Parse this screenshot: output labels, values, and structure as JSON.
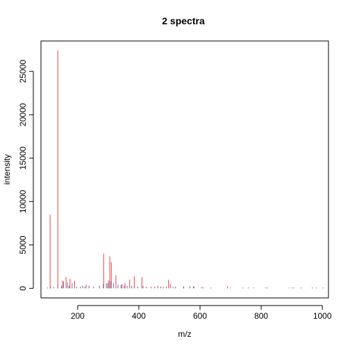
{
  "chart_data": {
    "type": "bar",
    "title": "2 spectra",
    "xlabel": "m/z",
    "ylabel": "intensity",
    "xlim": [
      80,
      1020
    ],
    "ylim": [
      -1100,
      28500
    ],
    "xticks": [
      200,
      400,
      600,
      800,
      1000
    ],
    "yticks": [
      0,
      5000,
      10000,
      15000,
      20000,
      25000
    ],
    "series": [
      {
        "color": "#ef4040",
        "points": [
          [
            110,
            8500
          ],
          [
            135,
            27400
          ],
          [
            150,
            900
          ],
          [
            162,
            1300
          ],
          [
            175,
            1100
          ],
          [
            190,
            900
          ],
          [
            228,
            400
          ],
          [
            285,
            4000
          ],
          [
            298,
            600
          ],
          [
            305,
            3700
          ],
          [
            310,
            3000
          ],
          [
            325,
            1500
          ],
          [
            345,
            500
          ],
          [
            355,
            600
          ],
          [
            370,
            1000
          ],
          [
            385,
            1400
          ],
          [
            410,
            1300
          ],
          [
            425,
            200
          ],
          [
            440,
            200
          ],
          [
            462,
            300
          ],
          [
            480,
            200
          ],
          [
            497,
            1000
          ],
          [
            503,
            500
          ],
          [
            520,
            200
          ],
          [
            546,
            200
          ],
          [
            578,
            200
          ],
          [
            605,
            150
          ],
          [
            635,
            100
          ],
          [
            690,
            250
          ],
          [
            740,
            100
          ],
          [
            775,
            100
          ],
          [
            815,
            100
          ],
          [
            892,
            100
          ],
          [
            930,
            100
          ],
          [
            980,
            100
          ],
          [
            1003,
            100
          ]
        ]
      },
      {
        "color": "#6a6aa8",
        "points": [
          [
            100,
            100
          ],
          [
            110,
            100
          ],
          [
            120,
            150
          ],
          [
            133,
            150
          ],
          [
            145,
            300
          ],
          [
            152,
            800
          ],
          [
            165,
            700
          ],
          [
            170,
            300
          ],
          [
            180,
            600
          ],
          [
            195,
            200
          ],
          [
            207,
            200
          ],
          [
            215,
            300
          ],
          [
            222,
            200
          ],
          [
            235,
            300
          ],
          [
            250,
            200
          ],
          [
            270,
            300
          ],
          [
            282,
            500
          ],
          [
            292,
            600
          ],
          [
            300,
            900
          ],
          [
            307,
            800
          ],
          [
            315,
            600
          ],
          [
            330,
            400
          ],
          [
            340,
            400
          ],
          [
            350,
            300
          ],
          [
            360,
            300
          ],
          [
            375,
            300
          ],
          [
            395,
            200
          ],
          [
            412,
            300
          ],
          [
            450,
            200
          ],
          [
            470,
            200
          ],
          [
            488,
            200
          ],
          [
            510,
            200
          ],
          [
            545,
            200
          ],
          [
            565,
            250
          ],
          [
            578,
            250
          ],
          [
            608,
            150
          ],
          [
            697,
            100
          ],
          [
            756,
            100
          ],
          [
            818,
            100
          ],
          [
            900,
            100
          ],
          [
            905,
            100
          ],
          [
            965,
            100
          ]
        ]
      }
    ]
  }
}
